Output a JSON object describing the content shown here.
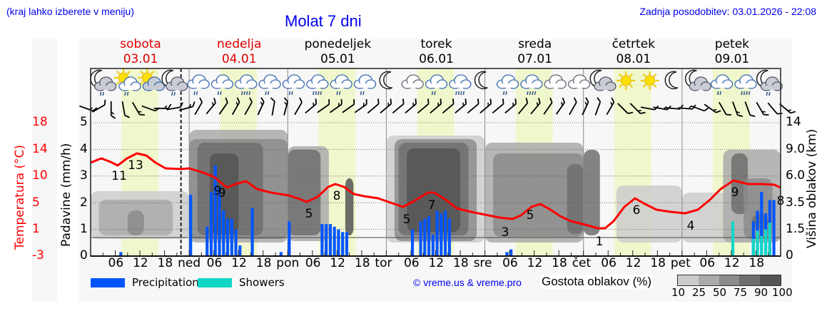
{
  "header": {
    "location_hint": "(kraj lahko izberete v meniju)",
    "title": "Molat 7 dni",
    "last_update": "Zadnja posodobitev: 03.01.2026 - 22:08"
  },
  "days": [
    {
      "name": "sobota",
      "date": "03.01",
      "color": "#e00000"
    },
    {
      "name": "nedelja",
      "date": "04.01",
      "color": "#e00000"
    },
    {
      "name": "ponedeljek",
      "date": "05.01",
      "color": "#000000"
    },
    {
      "name": "torek",
      "date": "06.01",
      "color": "#000000"
    },
    {
      "name": "sreda",
      "date": "07.01",
      "color": "#000000"
    },
    {
      "name": "četrtek",
      "date": "08.01",
      "color": "#000000"
    },
    {
      "name": "petek",
      "date": "09.01",
      "color": "#000000"
    }
  ],
  "axes": {
    "temp_label": "Temperatura (°C)",
    "temp_ticks": [
      "18",
      "14",
      "10",
      "5",
      "1",
      "-3"
    ],
    "precip_label": "Padavine (mm/h)",
    "precip_ticks": [
      "5",
      "4",
      "3",
      "2",
      "1",
      "0"
    ],
    "cloud_label": "Višina oblakov (km)",
    "cloud_ticks": [
      "14",
      "9.0",
      "6.0",
      "3.5",
      "1.5",
      "0"
    ],
    "x_ticks": [
      "06",
      "12",
      "18",
      "ned",
      "06",
      "12",
      "18",
      "pon",
      "06",
      "12",
      "18",
      "tor",
      "06",
      "12",
      "18",
      "sre",
      "06",
      "12",
      "18",
      "čet",
      "06",
      "12",
      "18",
      "pet",
      "06",
      "12",
      "18"
    ]
  },
  "legend": {
    "precipitation": "Precipitation",
    "showers": "Showers",
    "copyright": "© vreme.us & vreme.pro",
    "cloud_density_label": "Gostota oblakov (%)",
    "cloud_density_ticks": [
      "10",
      "25",
      "50",
      "75",
      "90",
      "100"
    ]
  },
  "colors": {
    "temperature": "#ff0000",
    "precipitation": "#0055ff",
    "showers": "#11d6c6",
    "daylight": "#f0f7cc",
    "title_blue": "#0000ee",
    "weekend_red": "#e00000",
    "cloud_scale": [
      "#cccccc",
      "#aaaaaa",
      "#8c8c8c",
      "#6e6e6e",
      "#555555"
    ]
  },
  "chart_data": {
    "type": "line",
    "title": "Molat 7 dni",
    "xlabel": "",
    "ylabel": "Padavine (mm/h)",
    "ylim": [
      0,
      5
    ],
    "y2label": "Temperatura (°C)",
    "y2lim": [
      -3,
      18
    ],
    "y3label": "Višina oblakov (km)",
    "grid": true,
    "legend_position": "bottom",
    "x_hours": [
      0,
      6,
      12,
      18,
      24,
      30,
      36,
      42,
      48,
      54,
      60,
      66,
      72,
      78,
      84,
      90,
      96,
      102,
      108,
      114,
      120,
      126,
      132,
      138,
      144,
      150,
      156,
      162,
      168
    ],
    "series": [
      {
        "name": "Temperatura (°C)",
        "annotated_points": [
          {
            "day": "sobota",
            "hour": 3,
            "label": "11"
          },
          {
            "day": "sobota",
            "hour": 9,
            "label": "13"
          },
          {
            "day": "nedelja",
            "hour": 9,
            "label": "9"
          },
          {
            "day": "nedelja",
            "hour": 10,
            "label": "9"
          },
          {
            "day": "ponedeljek",
            "hour": 1,
            "label": "5"
          },
          {
            "day": "ponedeljek",
            "hour": 8,
            "label": "8"
          },
          {
            "day": "torek",
            "hour": 1,
            "label": "5"
          },
          {
            "day": "torek",
            "hour": 7,
            "label": "7"
          },
          {
            "day": "sreda",
            "hour": 3,
            "label": "3"
          },
          {
            "day": "sreda",
            "hour": 9,
            "label": "5"
          },
          {
            "day": "četrtek",
            "hour": 3,
            "label": "1"
          },
          {
            "day": "četrtek",
            "hour": 12,
            "label": "6"
          },
          {
            "day": "petek",
            "hour": 2,
            "label": "4"
          },
          {
            "day": "petek",
            "hour": 14,
            "label": "9"
          },
          {
            "day": "petek",
            "hour": 23,
            "label": "8"
          }
        ]
      },
      {
        "name": "Precipitation",
        "unit": "mm/h",
        "bars": [
          {
            "day": "sobota",
            "hour": 7,
            "value": 0.15
          },
          {
            "day": "nedelja",
            "hour": 0,
            "value": 2.3
          },
          {
            "day": "nedelja",
            "hour": 4,
            "value": 1.1
          },
          {
            "day": "nedelja",
            "hour": 5,
            "value": 2.4
          },
          {
            "day": "nedelja",
            "hour": 6,
            "value": 3.4
          },
          {
            "day": "nedelja",
            "hour": 7,
            "value": 2.6
          },
          {
            "day": "nedelja",
            "hour": 8,
            "value": 1.7
          },
          {
            "day": "nedelja",
            "hour": 9,
            "value": 1.4
          },
          {
            "day": "nedelja",
            "hour": 10,
            "value": 1.4
          },
          {
            "day": "nedelja",
            "hour": 11,
            "value": 1.0
          },
          {
            "day": "nedelja",
            "hour": 12,
            "value": 0.4
          },
          {
            "day": "nedelja",
            "hour": 15,
            "value": 1.8
          },
          {
            "day": "nedelja",
            "hour": 22,
            "value": 0.15
          },
          {
            "day": "ponedeljek",
            "hour": 0,
            "value": 1.3
          },
          {
            "day": "ponedeljek",
            "hour": 8,
            "value": 1.2
          },
          {
            "day": "ponedeljek",
            "hour": 9,
            "value": 1.2
          },
          {
            "day": "ponedeljek",
            "hour": 10,
            "value": 1.2
          },
          {
            "day": "ponedeljek",
            "hour": 11,
            "value": 1.1
          },
          {
            "day": "ponedeljek",
            "hour": 12,
            "value": 1.0
          },
          {
            "day": "ponedeljek",
            "hour": 13,
            "value": 0.9
          },
          {
            "day": "ponedeljek",
            "hour": 14,
            "value": 0.9
          },
          {
            "day": "torek",
            "hour": 6,
            "value": 1.0
          },
          {
            "day": "torek",
            "hour": 8,
            "value": 1.3
          },
          {
            "day": "torek",
            "hour": 9,
            "value": 1.4
          },
          {
            "day": "torek",
            "hour": 10,
            "value": 1.5
          },
          {
            "day": "torek",
            "hour": 11,
            "value": 0.8
          },
          {
            "day": "torek",
            "hour": 12,
            "value": 1.7
          },
          {
            "day": "torek",
            "hour": 13,
            "value": 1.6
          },
          {
            "day": "torek",
            "hour": 14,
            "value": 1.7
          },
          {
            "day": "torek",
            "hour": 15,
            "value": 1.4
          },
          {
            "day": "sreda",
            "hour": 5,
            "value": 0.15
          },
          {
            "day": "sreda",
            "hour": 6,
            "value": 0.25
          },
          {
            "day": "petek",
            "hour": 17,
            "value": 1.3
          },
          {
            "day": "petek",
            "hour": 18,
            "value": 1.7
          },
          {
            "day": "petek",
            "hour": 19,
            "value": 2.4
          },
          {
            "day": "petek",
            "hour": 20,
            "value": 1.6
          },
          {
            "day": "petek",
            "hour": 21,
            "value": 2.1
          },
          {
            "day": "petek",
            "hour": 22,
            "value": 2.1
          }
        ]
      },
      {
        "name": "Showers",
        "unit": "mm/h",
        "bars": [
          {
            "day": "petek",
            "hour": 12,
            "value": 1.3
          },
          {
            "day": "petek",
            "hour": 17,
            "value": 0.65
          },
          {
            "day": "petek",
            "hour": 18,
            "value": 0.95
          },
          {
            "day": "petek",
            "hour": 19,
            "value": 0.75
          },
          {
            "day": "petek",
            "hour": 20,
            "value": 1.0
          },
          {
            "day": "petek",
            "hour": 21,
            "value": 1.25
          }
        ]
      }
    ],
    "cloud_density_scale_pct": [
      10,
      25,
      50,
      75,
      90,
      100
    ]
  }
}
